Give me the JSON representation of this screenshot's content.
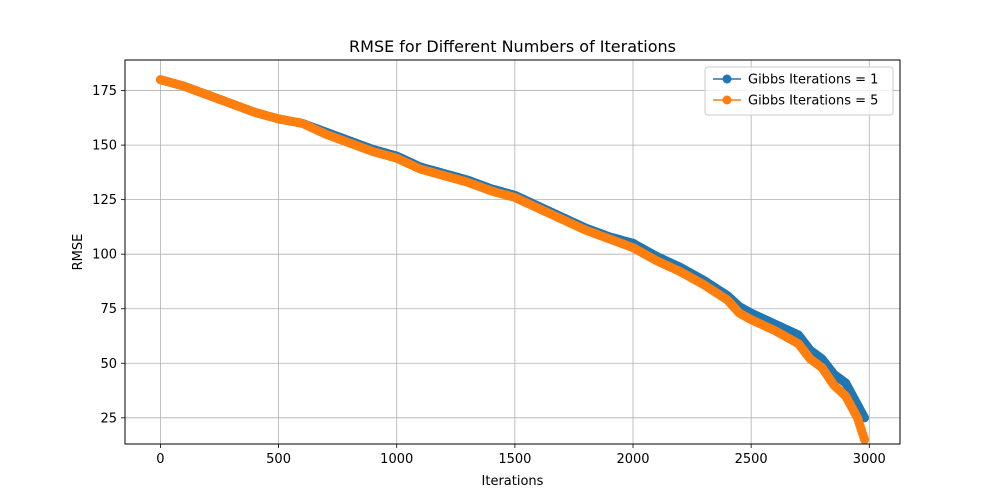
{
  "chart_data": {
    "type": "line",
    "title": "RMSE for Different Numbers of Iterations",
    "xlabel": "Iterations",
    "ylabel": "RMSE",
    "xlim": [
      -150,
      3130
    ],
    "ylim": [
      13,
      189
    ],
    "xticks": [
      0,
      500,
      1000,
      1500,
      2000,
      2500,
      3000
    ],
    "yticks": [
      25,
      50,
      75,
      100,
      125,
      150,
      175
    ],
    "grid": true,
    "legend_position": "top-right",
    "series": [
      {
        "name": "Gibbs Iterations = 1",
        "color": "#1f77b4",
        "x": [
          0,
          100,
          200,
          300,
          400,
          500,
          600,
          700,
          800,
          900,
          1000,
          1100,
          1200,
          1300,
          1400,
          1500,
          1600,
          1700,
          1800,
          1900,
          2000,
          2100,
          2200,
          2300,
          2400,
          2450,
          2500,
          2600,
          2700,
          2750,
          2800,
          2850,
          2900,
          2950,
          2980
        ],
        "y": [
          180,
          177,
          173,
          169,
          165,
          162,
          160,
          156,
          152,
          148,
          145,
          140,
          137,
          134,
          130,
          127,
          122,
          117,
          112,
          108,
          105,
          99,
          94,
          88,
          81,
          76,
          73,
          68,
          63,
          56,
          52,
          45,
          41,
          31,
          25
        ]
      },
      {
        "name": "Gibbs Iterations = 5",
        "color": "#ff7f0e",
        "x": [
          0,
          100,
          200,
          300,
          400,
          500,
          600,
          700,
          800,
          900,
          1000,
          1100,
          1200,
          1300,
          1400,
          1500,
          1600,
          1700,
          1800,
          1900,
          2000,
          2100,
          2200,
          2300,
          2400,
          2450,
          2500,
          2600,
          2700,
          2750,
          2800,
          2850,
          2900,
          2950,
          2980
        ],
        "y": [
          180,
          177,
          173,
          169,
          165,
          162,
          160,
          155,
          151,
          147,
          144,
          139,
          136,
          133,
          129,
          126,
          121,
          116,
          111,
          107,
          103,
          97,
          92,
          86,
          79,
          73,
          70,
          65,
          59,
          52,
          48,
          40,
          35,
          25,
          15
        ]
      }
    ]
  }
}
